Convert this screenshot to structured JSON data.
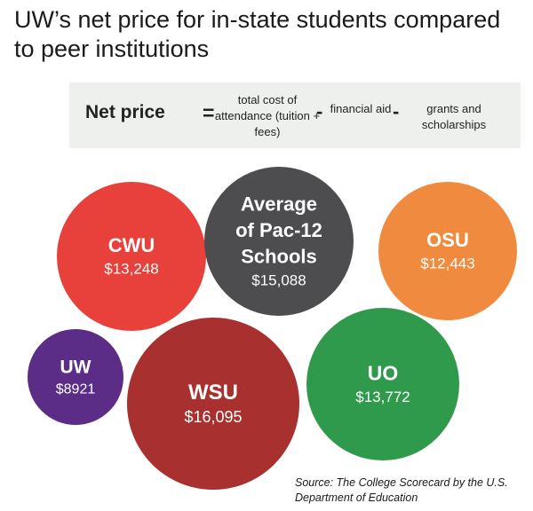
{
  "title": "UW’s net price for in-state students compared to peer institutions",
  "formula": {
    "label": "Net price",
    "equals": "=",
    "term1": "total cost of attendance (tuition + fees)",
    "minus": "-",
    "term2": "financial aid",
    "term3": "grants and scholarships"
  },
  "source": "Source: The College Scorecard by the U.S. Department of Education",
  "chart_data": {
    "type": "bubble",
    "title": "UW’s net price for in-state students compared to peer institutions",
    "unit": "USD",
    "items": [
      {
        "name": "CWU",
        "value": 13248,
        "label": "$13,248",
        "color": "#e8403a"
      },
      {
        "name": "Average of Pac-12 Schools",
        "value": 15088,
        "label": "$15,088",
        "color": "#4d4d4f"
      },
      {
        "name": "OSU",
        "value": 12443,
        "label": "$12,443",
        "color": "#f08a3f"
      },
      {
        "name": "UW",
        "value": 8921,
        "label": "$8921",
        "color": "#5b2d86"
      },
      {
        "name": "WSU",
        "value": 16095,
        "label": "$16,095",
        "color": "#a8302e"
      },
      {
        "name": "UO",
        "value": 13772,
        "label": "$13,772",
        "color": "#2f9a4b"
      }
    ]
  }
}
